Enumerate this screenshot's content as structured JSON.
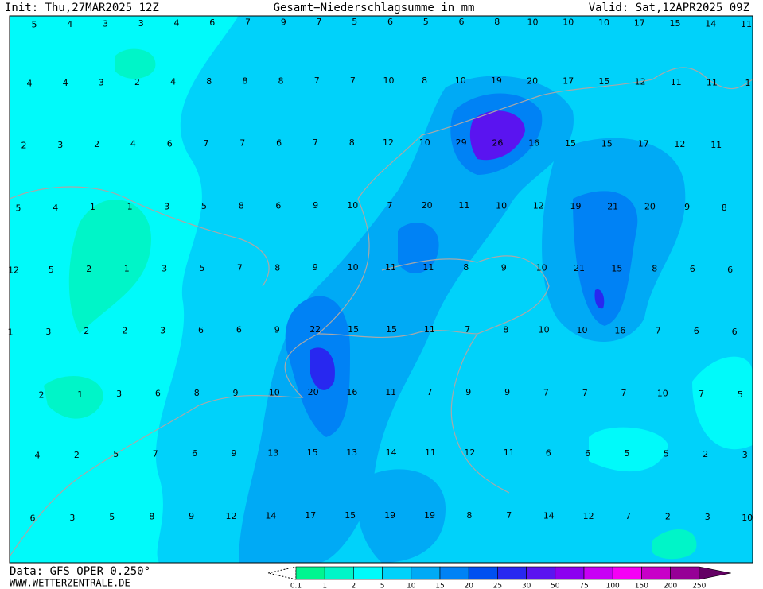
{
  "header": {
    "init": "Init: Thu,27MAR2025 12Z",
    "title": "Gesamt−Niederschlagsumme in mm",
    "valid": "Valid: Sat,12APR2025 09Z"
  },
  "footer": {
    "source": "Data: GFS OPER 0.250°",
    "site": "WWW.WETTERZENTRALE.DE"
  },
  "grid": {
    "rows": [
      [
        5,
        4,
        3,
        3,
        4,
        6,
        7,
        9,
        7,
        5,
        6,
        5,
        6,
        8,
        10,
        10,
        10,
        17,
        15,
        14,
        11
      ],
      [
        4,
        4,
        3,
        2,
        4,
        8,
        8,
        8,
        7,
        7,
        10,
        8,
        10,
        19,
        20,
        17,
        15,
        12,
        11,
        11,
        1
      ],
      [
        2,
        3,
        2,
        4,
        6,
        7,
        7,
        6,
        7,
        8,
        12,
        10,
        29,
        26,
        16,
        15,
        15,
        17,
        12,
        11
      ],
      [
        5,
        4,
        1,
        1,
        3,
        5,
        8,
        6,
        9,
        10,
        7,
        20,
        11,
        10,
        12,
        19,
        21,
        20,
        9,
        8
      ],
      [
        12,
        5,
        2,
        1,
        3,
        5,
        7,
        8,
        9,
        10,
        11,
        11,
        8,
        9,
        10,
        21,
        15,
        8,
        6,
        6
      ],
      [
        1,
        3,
        2,
        2,
        3,
        6,
        6,
        9,
        22,
        15,
        15,
        11,
        7,
        8,
        10,
        10,
        16,
        7,
        6,
        6
      ],
      [
        2,
        1,
        3,
        6,
        8,
        9,
        10,
        20,
        16,
        11,
        7,
        9,
        9,
        7,
        7,
        7,
        10,
        7,
        5
      ],
      [
        4,
        2,
        5,
        7,
        6,
        9,
        13,
        15,
        13,
        14,
        11,
        12,
        11,
        6,
        6,
        5,
        5,
        2,
        3
      ],
      [
        6,
        3,
        5,
        8,
        9,
        12,
        14,
        17,
        15,
        19,
        19,
        8,
        7,
        14,
        12,
        7,
        2,
        3,
        10
      ]
    ]
  },
  "legend": {
    "ticks": [
      0.1,
      1,
      2,
      5,
      10,
      15,
      20,
      25,
      30,
      50,
      75,
      100,
      150,
      200,
      250
    ],
    "colors": [
      "#00f590",
      "#00f5c8",
      "#00fafa",
      "#00d2fa",
      "#00aaf5",
      "#0082f5",
      "#0050f0",
      "#2828f0",
      "#5a14f0",
      "#8c00f0",
      "#c800f5",
      "#f500f5",
      "#c800c8",
      "#960096",
      "#640064"
    ]
  }
}
